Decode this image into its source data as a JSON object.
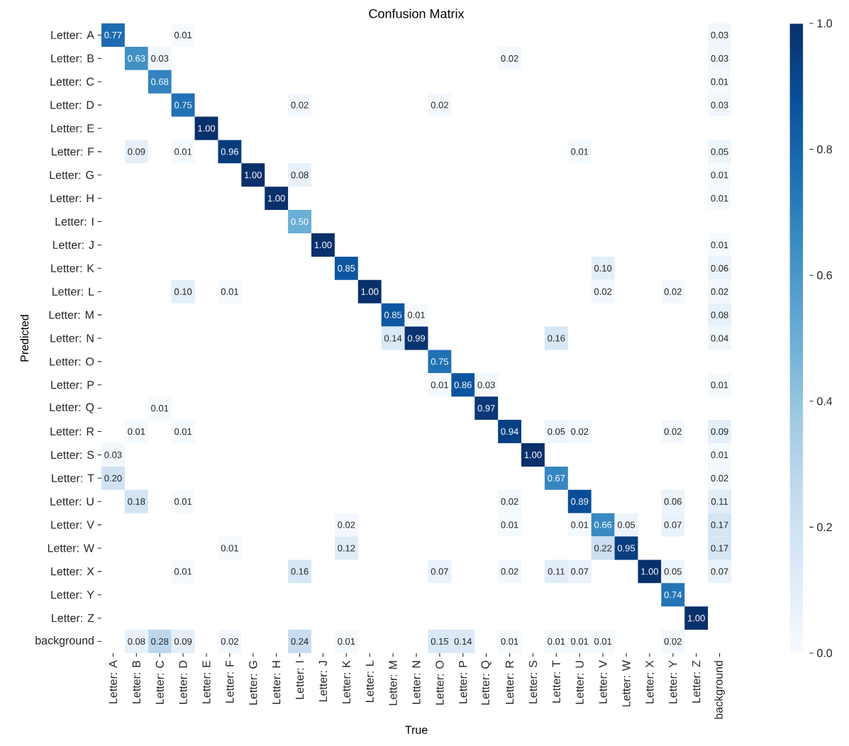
{
  "chart_data": {
    "type": "heatmap",
    "title": "Confusion Matrix",
    "xlabel": "True",
    "ylabel": "Predicted",
    "categories": [
      "Letter: A",
      "Letter: B",
      "Letter: C",
      "Letter: D",
      "Letter: E",
      "Letter: F",
      "Letter: G",
      "Letter: H",
      "Letter: I",
      "Letter: J",
      "Letter: K",
      "Letter: L",
      "Letter: M",
      "Letter: N",
      "Letter: O",
      "Letter: P",
      "Letter: Q",
      "Letter: R",
      "Letter: S",
      "Letter: T",
      "Letter: U",
      "Letter: V",
      "Letter: W",
      "Letter: X",
      "Letter: Y",
      "Letter: Z",
      "background"
    ],
    "y_categories": [
      "Letter: A",
      "Letter: B",
      "Letter: C",
      "Letter: D",
      "Letter: E",
      "Letter: F",
      "Letter: G",
      "Letter: H",
      "Letter: I",
      "Letter: J",
      "Letter: K",
      "Letter: L",
      "Letter: M",
      "Letter: N",
      "Letter: O",
      "Letter: P",
      "Letter: Q",
      "Letter: R",
      "Letter: S",
      "Letter: T",
      "Letter: U",
      "Letter: V",
      "Letter: W",
      "Letter: X",
      "Letter: Y",
      "Letter: Z",
      "background"
    ],
    "cells": [
      [
        0.77,
        null,
        null,
        0.01,
        null,
        null,
        null,
        null,
        null,
        null,
        null,
        null,
        null,
        null,
        null,
        null,
        null,
        null,
        null,
        null,
        null,
        null,
        null,
        null,
        null,
        null,
        0.03
      ],
      [
        null,
        0.63,
        0.03,
        null,
        null,
        null,
        null,
        null,
        null,
        null,
        null,
        null,
        null,
        null,
        null,
        null,
        null,
        0.02,
        null,
        null,
        null,
        null,
        null,
        null,
        null,
        null,
        0.03
      ],
      [
        null,
        null,
        0.68,
        null,
        null,
        null,
        null,
        null,
        null,
        null,
        null,
        null,
        null,
        null,
        null,
        null,
        null,
        null,
        null,
        null,
        null,
        null,
        null,
        null,
        null,
        null,
        0.01
      ],
      [
        null,
        null,
        null,
        0.75,
        null,
        null,
        null,
        null,
        0.02,
        null,
        null,
        null,
        null,
        null,
        0.02,
        null,
        null,
        null,
        null,
        null,
        null,
        null,
        null,
        null,
        null,
        null,
        0.03
      ],
      [
        null,
        null,
        null,
        null,
        1.0,
        null,
        null,
        null,
        null,
        null,
        null,
        null,
        null,
        null,
        null,
        null,
        null,
        null,
        null,
        null,
        null,
        null,
        null,
        null,
        null,
        null,
        null
      ],
      [
        null,
        0.09,
        null,
        0.01,
        null,
        0.96,
        null,
        null,
        null,
        null,
        null,
        null,
        null,
        null,
        null,
        null,
        null,
        null,
        null,
        null,
        0.01,
        null,
        null,
        null,
        null,
        null,
        0.05
      ],
      [
        null,
        null,
        null,
        null,
        null,
        null,
        1.0,
        null,
        0.08,
        null,
        null,
        null,
        null,
        null,
        null,
        null,
        null,
        null,
        null,
        null,
        null,
        null,
        null,
        null,
        null,
        null,
        0.01
      ],
      [
        null,
        null,
        null,
        null,
        null,
        null,
        null,
        1.0,
        null,
        null,
        null,
        null,
        null,
        null,
        null,
        null,
        null,
        null,
        null,
        null,
        null,
        null,
        null,
        null,
        null,
        null,
        0.01
      ],
      [
        null,
        null,
        null,
        null,
        null,
        null,
        null,
        null,
        0.5,
        null,
        null,
        null,
        null,
        null,
        null,
        null,
        null,
        null,
        null,
        null,
        null,
        null,
        null,
        null,
        null,
        null,
        null
      ],
      [
        null,
        null,
        null,
        null,
        null,
        null,
        null,
        null,
        null,
        1.0,
        null,
        null,
        null,
        null,
        null,
        null,
        null,
        null,
        null,
        null,
        null,
        null,
        null,
        null,
        null,
        null,
        0.01
      ],
      [
        null,
        null,
        null,
        null,
        null,
        null,
        null,
        null,
        null,
        null,
        0.85,
        null,
        null,
        null,
        null,
        null,
        null,
        null,
        null,
        null,
        null,
        0.1,
        null,
        null,
        null,
        null,
        0.06
      ],
      [
        null,
        null,
        null,
        0.1,
        null,
        0.01,
        null,
        null,
        null,
        null,
        null,
        1.0,
        null,
        null,
        null,
        null,
        null,
        null,
        null,
        null,
        null,
        0.02,
        null,
        null,
        0.02,
        null,
        0.02
      ],
      [
        null,
        null,
        null,
        null,
        null,
        null,
        null,
        null,
        null,
        null,
        null,
        null,
        0.85,
        0.01,
        null,
        null,
        null,
        null,
        null,
        null,
        null,
        null,
        null,
        null,
        null,
        null,
        0.08
      ],
      [
        null,
        null,
        null,
        null,
        null,
        null,
        null,
        null,
        null,
        null,
        null,
        null,
        0.14,
        0.99,
        null,
        null,
        null,
        null,
        null,
        0.16,
        null,
        null,
        null,
        null,
        null,
        null,
        0.04
      ],
      [
        null,
        null,
        null,
        null,
        null,
        null,
        null,
        null,
        null,
        null,
        null,
        null,
        null,
        null,
        0.75,
        null,
        null,
        null,
        null,
        null,
        null,
        null,
        null,
        null,
        null,
        null,
        null
      ],
      [
        null,
        null,
        null,
        null,
        null,
        null,
        null,
        null,
        null,
        null,
        null,
        null,
        null,
        null,
        0.01,
        0.86,
        0.03,
        null,
        null,
        null,
        null,
        null,
        null,
        null,
        null,
        null,
        0.01
      ],
      [
        null,
        null,
        0.01,
        null,
        null,
        null,
        null,
        null,
        null,
        null,
        null,
        null,
        null,
        null,
        null,
        null,
        0.97,
        null,
        null,
        null,
        null,
        null,
        null,
        null,
        null,
        null,
        null
      ],
      [
        null,
        0.01,
        null,
        0.01,
        null,
        null,
        null,
        null,
        null,
        null,
        null,
        null,
        null,
        null,
        null,
        null,
        null,
        0.94,
        null,
        0.05,
        0.02,
        null,
        null,
        null,
        0.02,
        null,
        0.09
      ],
      [
        0.03,
        null,
        null,
        null,
        null,
        null,
        null,
        null,
        null,
        null,
        null,
        null,
        null,
        null,
        null,
        null,
        null,
        null,
        1.0,
        null,
        null,
        null,
        null,
        null,
        null,
        null,
        0.01
      ],
      [
        0.2,
        null,
        null,
        null,
        null,
        null,
        null,
        null,
        null,
        null,
        null,
        null,
        null,
        null,
        null,
        null,
        null,
        null,
        null,
        0.67,
        null,
        null,
        null,
        null,
        null,
        null,
        0.02
      ],
      [
        null,
        0.18,
        null,
        0.01,
        null,
        null,
        null,
        null,
        null,
        null,
        null,
        null,
        null,
        null,
        null,
        null,
        null,
        0.02,
        null,
        null,
        0.89,
        null,
        null,
        null,
        0.06,
        null,
        0.11
      ],
      [
        null,
        null,
        null,
        null,
        null,
        null,
        null,
        null,
        null,
        null,
        0.02,
        null,
        null,
        null,
        null,
        null,
        null,
        0.01,
        null,
        null,
        0.01,
        0.66,
        0.05,
        null,
        0.07,
        null,
        0.17
      ],
      [
        null,
        null,
        null,
        null,
        null,
        0.01,
        null,
        null,
        null,
        null,
        0.12,
        null,
        null,
        null,
        null,
        null,
        null,
        null,
        null,
        null,
        null,
        0.22,
        0.95,
        null,
        null,
        null,
        0.17
      ],
      [
        null,
        null,
        null,
        0.01,
        null,
        null,
        null,
        null,
        0.16,
        null,
        null,
        null,
        null,
        null,
        0.07,
        null,
        null,
        0.02,
        null,
        0.11,
        0.07,
        null,
        null,
        1.0,
        0.05,
        null,
        0.07
      ],
      [
        null,
        null,
        null,
        null,
        null,
        null,
        null,
        null,
        null,
        null,
        null,
        null,
        null,
        null,
        null,
        null,
        null,
        null,
        null,
        null,
        null,
        null,
        null,
        null,
        0.74,
        null,
        null
      ],
      [
        null,
        null,
        null,
        null,
        null,
        null,
        null,
        null,
        null,
        null,
        null,
        null,
        null,
        null,
        null,
        null,
        null,
        null,
        null,
        null,
        null,
        null,
        null,
        null,
        null,
        1.0,
        null
      ],
      [
        null,
        0.08,
        0.28,
        0.09,
        null,
        0.02,
        null,
        null,
        0.24,
        null,
        0.01,
        null,
        null,
        null,
        0.15,
        0.14,
        null,
        0.01,
        null,
        0.01,
        0.01,
        0.01,
        null,
        null,
        0.02,
        null,
        null
      ]
    ],
    "cell_labels": [
      [
        "0.77",
        null,
        null,
        "0.01",
        null,
        null,
        null,
        null,
        null,
        null,
        null,
        null,
        null,
        null,
        null,
        null,
        null,
        null,
        null,
        null,
        null,
        null,
        null,
        null,
        null,
        null,
        "0.03"
      ],
      [
        null,
        "0.63",
        "0.03",
        null,
        null,
        null,
        null,
        null,
        null,
        null,
        null,
        null,
        null,
        null,
        null,
        null,
        null,
        "0.02",
        null,
        null,
        null,
        null,
        null,
        null,
        null,
        null,
        "0.03"
      ],
      [
        null,
        null,
        "0.68",
        null,
        null,
        null,
        null,
        null,
        null,
        null,
        null,
        null,
        null,
        null,
        null,
        null,
        null,
        null,
        null,
        null,
        null,
        null,
        null,
        null,
        null,
        null,
        "0.01"
      ],
      [
        null,
        null,
        null,
        "0.75",
        null,
        null,
        null,
        null,
        "0.02",
        null,
        null,
        null,
        null,
        null,
        "0.02",
        null,
        null,
        null,
        null,
        null,
        null,
        null,
        null,
        null,
        null,
        null,
        "0.03"
      ],
      [
        null,
        null,
        null,
        null,
        "1.00",
        null,
        null,
        null,
        null,
        null,
        null,
        null,
        null,
        null,
        null,
        null,
        null,
        null,
        null,
        null,
        null,
        null,
        null,
        null,
        null,
        null,
        null
      ],
      [
        null,
        "0.09",
        null,
        "0.01",
        null,
        "0.96",
        null,
        null,
        null,
        null,
        null,
        null,
        null,
        null,
        null,
        null,
        null,
        null,
        null,
        null,
        "0.01",
        null,
        null,
        null,
        null,
        null,
        "0.05"
      ],
      [
        null,
        null,
        null,
        null,
        null,
        null,
        "1.00",
        null,
        "0.08",
        null,
        null,
        null,
        null,
        null,
        null,
        null,
        null,
        null,
        null,
        null,
        null,
        null,
        null,
        null,
        null,
        null,
        "0.01"
      ],
      [
        null,
        null,
        null,
        null,
        null,
        null,
        null,
        "1.00",
        null,
        null,
        null,
        null,
        null,
        null,
        null,
        null,
        null,
        null,
        null,
        null,
        null,
        null,
        null,
        null,
        null,
        null,
        "0.01"
      ],
      [
        null,
        null,
        null,
        null,
        null,
        null,
        null,
        null,
        "0.50",
        null,
        null,
        null,
        null,
        null,
        null,
        null,
        null,
        null,
        null,
        null,
        null,
        null,
        null,
        null,
        null,
        null,
        null
      ],
      [
        null,
        null,
        null,
        null,
        null,
        null,
        null,
        null,
        null,
        "1.00",
        null,
        null,
        null,
        null,
        null,
        null,
        null,
        null,
        null,
        null,
        null,
        null,
        null,
        null,
        null,
        null,
        "0.01"
      ],
      [
        null,
        null,
        null,
        null,
        null,
        null,
        null,
        null,
        null,
        null,
        "0.85",
        null,
        null,
        null,
        null,
        null,
        null,
        null,
        null,
        null,
        null,
        "0.10",
        null,
        null,
        null,
        null,
        "0.06"
      ],
      [
        null,
        null,
        null,
        "0.10",
        null,
        "0.01",
        null,
        null,
        null,
        null,
        null,
        "1.00",
        null,
        null,
        null,
        null,
        null,
        null,
        null,
        null,
        null,
        "0.02",
        null,
        null,
        "0.02",
        null,
        "0.02"
      ],
      [
        null,
        null,
        null,
        null,
        null,
        null,
        null,
        null,
        null,
        null,
        null,
        null,
        "0.85",
        "0.01",
        null,
        null,
        null,
        null,
        null,
        null,
        null,
        null,
        null,
        null,
        null,
        null,
        "0.08"
      ],
      [
        null,
        null,
        null,
        null,
        null,
        null,
        null,
        null,
        null,
        null,
        null,
        null,
        "0.14",
        "0.99",
        null,
        null,
        null,
        null,
        null,
        "0.16",
        null,
        null,
        null,
        null,
        null,
        null,
        "0.04"
      ],
      [
        null,
        null,
        null,
        null,
        null,
        null,
        null,
        null,
        null,
        null,
        null,
        null,
        null,
        null,
        "0.75",
        null,
        null,
        null,
        null,
        null,
        null,
        null,
        null,
        null,
        null,
        null,
        null
      ],
      [
        null,
        null,
        null,
        null,
        null,
        null,
        null,
        null,
        null,
        null,
        null,
        null,
        null,
        null,
        "0.01",
        "0.86",
        "0.03",
        null,
        null,
        null,
        null,
        null,
        null,
        null,
        null,
        null,
        "0.01"
      ],
      [
        null,
        null,
        "0.01",
        null,
        null,
        null,
        null,
        null,
        null,
        null,
        null,
        null,
        null,
        null,
        null,
        null,
        "0.97",
        null,
        null,
        null,
        null,
        null,
        null,
        null,
        null,
        null,
        null
      ],
      [
        null,
        "0.01",
        null,
        "0.01",
        null,
        null,
        null,
        null,
        null,
        null,
        null,
        null,
        null,
        null,
        null,
        null,
        null,
        "0.94",
        null,
        "0.05",
        "0.02",
        null,
        null,
        null,
        "0.02",
        null,
        "0.09"
      ],
      [
        "0.03",
        null,
        null,
        null,
        null,
        null,
        null,
        null,
        null,
        null,
        null,
        null,
        null,
        null,
        null,
        null,
        null,
        null,
        "1.00",
        null,
        null,
        null,
        null,
        null,
        null,
        null,
        "0.01"
      ],
      [
        "0.20",
        null,
        null,
        null,
        null,
        null,
        null,
        null,
        null,
        null,
        null,
        null,
        null,
        null,
        null,
        null,
        null,
        null,
        null,
        "0.67",
        null,
        null,
        null,
        null,
        null,
        null,
        "0.02"
      ],
      [
        null,
        "0.18",
        null,
        "0.01",
        null,
        null,
        null,
        null,
        null,
        null,
        null,
        null,
        null,
        null,
        null,
        null,
        null,
        "0.02",
        null,
        null,
        "0.89",
        null,
        null,
        null,
        "0.06",
        null,
        "0.11"
      ],
      [
        null,
        null,
        null,
        null,
        null,
        null,
        null,
        null,
        null,
        null,
        "0.02",
        null,
        null,
        null,
        null,
        null,
        null,
        "0.01",
        null,
        null,
        "0.01",
        "0.66",
        "0.05",
        null,
        "0.07",
        null,
        "0.17"
      ],
      [
        null,
        null,
        null,
        null,
        null,
        "0.01",
        null,
        null,
        null,
        null,
        "0.12",
        null,
        null,
        null,
        null,
        null,
        null,
        null,
        null,
        null,
        null,
        "0.22",
        "0.95",
        null,
        null,
        null,
        "0.17"
      ],
      [
        null,
        null,
        null,
        "0.01",
        null,
        null,
        null,
        null,
        "0.16",
        null,
        null,
        null,
        null,
        null,
        "0.07",
        null,
        null,
        "0.02",
        null,
        "0.11",
        "0.07",
        null,
        null,
        "1.00",
        "0.05",
        null,
        "0.07"
      ],
      [
        null,
        null,
        null,
        null,
        null,
        null,
        null,
        null,
        null,
        null,
        null,
        null,
        null,
        null,
        null,
        null,
        null,
        null,
        null,
        null,
        null,
        null,
        null,
        null,
        "0.74",
        null,
        null
      ],
      [
        null,
        null,
        null,
        null,
        null,
        null,
        null,
        null,
        null,
        null,
        null,
        null,
        null,
        null,
        null,
        null,
        null,
        null,
        null,
        null,
        null,
        null,
        null,
        null,
        null,
        "1.00",
        null
      ],
      [
        null,
        "0.08",
        "0.28",
        "0.09",
        null,
        "0.02",
        null,
        null,
        "0.24",
        null,
        "0.01",
        null,
        null,
        null,
        "0.15",
        "0.14",
        null,
        "0.01",
        null,
        "0.01",
        "0.01",
        "0.01",
        null,
        null,
        "0.02",
        null,
        null
      ]
    ],
    "clim": [
      0,
      1
    ],
    "cticks": [
      {
        "value": 0,
        "label": "0.0"
      },
      {
        "value": 0.2,
        "label": "0.2"
      },
      {
        "value": 0.4,
        "label": "0.4"
      },
      {
        "value": 0.6,
        "label": "0.6"
      },
      {
        "value": 0.8,
        "label": "0.8"
      },
      {
        "value": 1,
        "label": "1.0"
      }
    ]
  }
}
